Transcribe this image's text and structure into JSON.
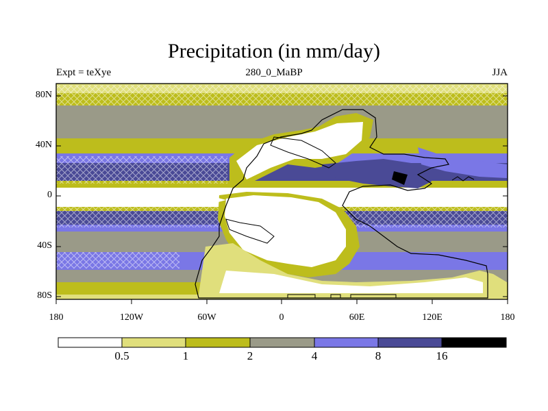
{
  "header": {
    "title": "Precipitation (in mm/day)",
    "expt": "Expt = teXye",
    "period": "280_0_MaBP",
    "season": "JJA"
  },
  "map": {
    "lat_ticks": [
      "80N",
      "40N",
      "0",
      "40S",
      "80S"
    ],
    "lon_ticks": [
      "180",
      "120W",
      "60W",
      "0",
      "60E",
      "120E",
      "180"
    ]
  },
  "colorbar": {
    "labels": [
      "0.5",
      "1",
      "2",
      "4",
      "8",
      "16"
    ],
    "colors": [
      "#ffffff",
      "#e0df7c",
      "#bdbd1c",
      "#9a9a88",
      "#7a77e6",
      "#4a4a96",
      "#000000"
    ]
  },
  "chart_data": {
    "type": "heatmap",
    "title": "Precipitation (in mm/day)",
    "subtitle": "280_0_MaBP",
    "xlim": [
      -180,
      180
    ],
    "ylim": [
      -90,
      90
    ],
    "contour_levels": [
      0.5,
      1,
      2,
      4,
      8,
      16
    ],
    "latitude_bands_zonal_typical": [
      {
        "lat_range": [
          80,
          90
        ],
        "value": "1-2"
      },
      {
        "lat_range": [
          60,
          80
        ],
        "value": "2-4"
      },
      {
        "lat_range": [
          45,
          60
        ],
        "value": "1-2"
      },
      {
        "lat_range": [
          20,
          30
        ],
        "value": "4-8"
      },
      {
        "lat_range": [
          5,
          20
        ],
        "value": "8-16"
      },
      {
        "lat_range": [
          -5,
          5
        ],
        "value": "<0.5"
      },
      {
        "lat_range": [
          -20,
          -5
        ],
        "value": "8-16"
      },
      {
        "lat_range": [
          -35,
          -20
        ],
        "value": "4-8"
      },
      {
        "lat_range": [
          -55,
          -35
        ],
        "value": "2-4"
      },
      {
        "lat_range": [
          -75,
          -55
        ],
        "value": "4-8"
      },
      {
        "lat_range": [
          -90,
          -75
        ],
        "value": "1-2"
      }
    ]
  }
}
